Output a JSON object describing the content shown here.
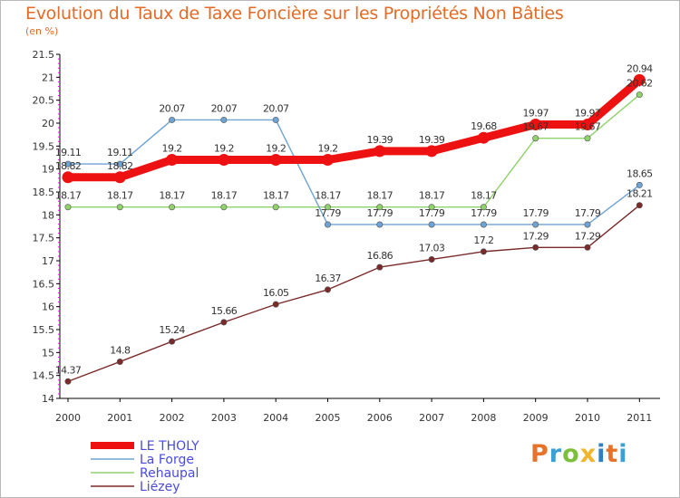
{
  "title": "Evolution du Taux de Taxe Foncière sur les Propriétés Non Bâties",
  "unit_label": "(en %)",
  "logo_text": "Proxiti",
  "chart_data": {
    "type": "line",
    "title": "Evolution du Taux de Taxe Foncière sur les Propriétés Non Bâties",
    "ylabel": "(en %)",
    "xlabel": "",
    "x": [
      "2000",
      "2001",
      "2002",
      "2003",
      "2004",
      "2005",
      "2006",
      "2007",
      "2008",
      "2009",
      "2010",
      "2011"
    ],
    "ylim": [
      14,
      21.5
    ],
    "yticks": [
      "14",
      "14.5",
      "15",
      "15.5",
      "16",
      "16.5",
      "17",
      "17.5",
      "18",
      "18.5",
      "19",
      "19.5",
      "20",
      "20.5",
      "21",
      "21.5"
    ],
    "grid": false,
    "legend_position": "bottom-left",
    "series": [
      {
        "name": "LE THOLY",
        "color": "#ee1111",
        "values": [
          18.82,
          18.82,
          19.2,
          19.2,
          19.2,
          19.2,
          19.39,
          19.39,
          19.68,
          19.97,
          19.97,
          20.94
        ],
        "labels": [
          "18.82",
          "18.82",
          "19.2",
          "19.2",
          "19.2",
          "19.2",
          "19.39",
          "19.39",
          "19.68",
          "19.97",
          "19.97",
          "20.94"
        ]
      },
      {
        "name": "La Forge",
        "color": "#6fa3d4",
        "values": [
          19.11,
          19.11,
          20.07,
          20.07,
          20.07,
          17.79,
          17.79,
          17.79,
          17.79,
          17.79,
          17.79,
          18.65
        ],
        "labels": [
          "19.11",
          "19.11",
          "20.07",
          "20.07",
          "20.07",
          "17.79",
          "17.79",
          "17.79",
          "17.79",
          "17.79",
          "17.79",
          "18.65"
        ]
      },
      {
        "name": "Rehaupal",
        "color": "#8fd16a",
        "values": [
          18.17,
          18.17,
          18.17,
          18.17,
          18.17,
          18.17,
          18.17,
          18.17,
          18.17,
          19.67,
          19.67,
          20.62
        ],
        "labels": [
          "18.17",
          "18.17",
          "18.17",
          "18.17",
          "18.17",
          "18.17",
          "18.17",
          "18.17",
          "18.17",
          "19.67",
          "19.67",
          "20.62"
        ]
      },
      {
        "name": "Liézey",
        "color": "#7a2a2a",
        "values": [
          14.37,
          14.8,
          15.24,
          15.66,
          16.05,
          16.37,
          16.86,
          17.03,
          17.2,
          17.29,
          17.29,
          18.21
        ],
        "labels": [
          "14.37",
          "14.8",
          "15.24",
          "15.66",
          "16.05",
          "16.37",
          "16.86",
          "17.03",
          "17.2",
          "17.29",
          "17.29",
          "18.21"
        ]
      }
    ]
  }
}
